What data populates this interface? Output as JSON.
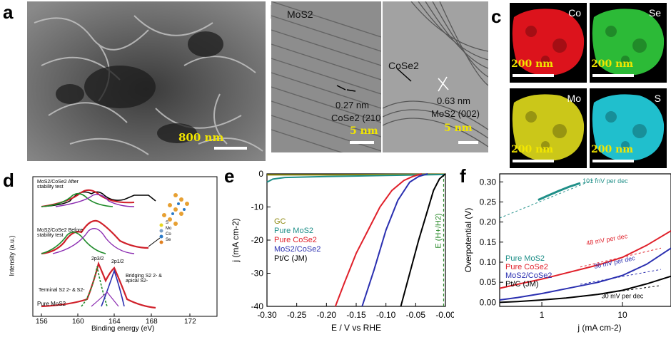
{
  "panels": {
    "a": {
      "label": "a",
      "scale": "800 nm"
    },
    "b": {
      "label": "b",
      "left_label": "MoS2",
      "fringe1": "0.27 nm",
      "plane1": "CoSe2 (210)",
      "scale1": "5 nm",
      "right_label": "CoSe2",
      "fringe2": "0.63 nm",
      "plane2": "MoS2 (002)",
      "scale2": "5 nm"
    },
    "c": {
      "label": "c",
      "maps": [
        {
          "element": "Co",
          "scale": "200 nm",
          "color": "#e8141e"
        },
        {
          "element": "Se",
          "scale": "200 nm",
          "color": "#2ec43a"
        },
        {
          "element": "Mo",
          "scale": "200 nm",
          "color": "#d6d21a"
        },
        {
          "element": "S",
          "scale": "200 nm",
          "color": "#22c9d8"
        }
      ]
    },
    "d": {
      "label": "d",
      "ylabel": "Intensity (a.u.)",
      "xlabel": "Binding energy (eV)",
      "xticks": [
        "156",
        "160",
        "164",
        "168",
        "172"
      ],
      "spectra": [
        "MoS2/CoSe2 After stability test",
        "MoS2/CoSe2 Before stability test",
        "Pure MoS2"
      ],
      "peak1": "2p3/2",
      "peak2": "2p1/2",
      "ann_left": "Terminal S2 2- & S2-",
      "ann_right": "Bridging S2 2- & apical S2-",
      "legend": [
        "S",
        "Mo",
        "Co",
        "Se"
      ]
    },
    "e": {
      "label": "e",
      "eq_label": "E (H+/H2)"
    },
    "f": {
      "label": "f"
    }
  },
  "chart_data": [
    {
      "type": "line",
      "panel": "e",
      "xlabel": "E / V vs RHE",
      "ylabel": "j (mA cm-2)",
      "xlim": [
        -0.3,
        0.0
      ],
      "ylim": [
        -40,
        0
      ],
      "xticks": [
        "-0.30",
        "-0.25",
        "-0.20",
        "-0.15",
        "-0.10",
        "-0.05",
        "-0.00"
      ],
      "yticks": [
        "0",
        "-10",
        "-20",
        "-30",
        "-40"
      ],
      "legend_position": "left",
      "series": [
        {
          "name": "GC",
          "color": "#8f8a12",
          "x": [
            -0.3,
            -0.2,
            -0.1,
            0.0
          ],
          "y": [
            -0.3,
            -0.3,
            -0.2,
            -0.1
          ]
        },
        {
          "name": "Pure MoS2",
          "color": "#1f8f88",
          "x": [
            -0.3,
            -0.29,
            -0.27,
            -0.2,
            -0.1,
            0.0
          ],
          "y": [
            -2.5,
            -1.6,
            -1.1,
            -0.8,
            -0.5,
            -0.2
          ]
        },
        {
          "name": "Pure CoSe2",
          "color": "#e0202a",
          "x": [
            -0.185,
            -0.17,
            -0.15,
            -0.13,
            -0.11,
            -0.09,
            -0.07,
            -0.055,
            -0.04
          ],
          "y": [
            -40,
            -33,
            -24,
            -17,
            -10,
            -5,
            -2,
            -0.8,
            0
          ]
        },
        {
          "name": "MoS2/CoSe2",
          "color": "#2a2fb0",
          "x": [
            -0.14,
            -0.12,
            -0.1,
            -0.08,
            -0.06,
            -0.045,
            -0.03
          ],
          "y": [
            -40,
            -29,
            -17,
            -8,
            -2.5,
            -0.8,
            0
          ]
        },
        {
          "name": "Pt/C (JM)",
          "color": "#000000",
          "x": [
            -0.075,
            -0.06,
            -0.045,
            -0.03,
            -0.02,
            -0.01,
            0.0
          ],
          "y": [
            -40,
            -30,
            -20,
            -11,
            -5,
            -1.5,
            0
          ]
        }
      ]
    },
    {
      "type": "line",
      "panel": "f",
      "xlabel": "j (mA cm-2)",
      "ylabel": "Overpotential (V)",
      "xscale": "log",
      "xlim": [
        0.3,
        40
      ],
      "ylim": [
        -0.01,
        0.32
      ],
      "xticks": [
        "1",
        "10"
      ],
      "yticks": [
        "0.00",
        "0.05",
        "0.10",
        "0.15",
        "0.20",
        "0.25",
        "0.30"
      ],
      "legend_position": "left",
      "series": [
        {
          "name": "Pure MoS2",
          "color": "#1f8f88",
          "x": [
            0.9,
            1.2,
            1.6,
            2.2,
            3.0
          ],
          "y": [
            0.255,
            0.266,
            0.277,
            0.288,
            0.297
          ]
        },
        {
          "name": "Pure CoSe2",
          "color": "#e0202a",
          "x": [
            0.3,
            0.5,
            1,
            2,
            5,
            10,
            20,
            40
          ],
          "y": [
            0.035,
            0.045,
            0.058,
            0.073,
            0.093,
            0.112,
            0.142,
            0.178
          ]
        },
        {
          "name": "MoS2/CoSe2",
          "color": "#2a2fb0",
          "x": [
            0.3,
            0.5,
            1,
            2,
            5,
            10,
            20,
            40
          ],
          "y": [
            0.006,
            0.012,
            0.022,
            0.034,
            0.05,
            0.067,
            0.095,
            0.135
          ]
        },
        {
          "name": "Pt/C (JM)",
          "color": "#000000",
          "x": [
            0.3,
            0.5,
            1,
            2,
            5,
            10,
            20,
            40
          ],
          "y": [
            0.0,
            0.002,
            0.006,
            0.011,
            0.02,
            0.03,
            0.046,
            0.065
          ]
        }
      ],
      "annotations": [
        "101 mV per dec",
        "48 mV per dec",
        "36 mV per dec",
        "30 mV per dec"
      ]
    }
  ]
}
